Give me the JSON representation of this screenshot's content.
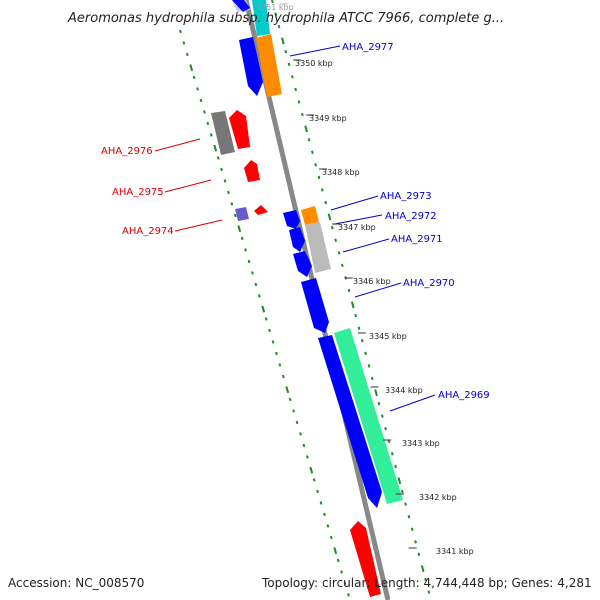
{
  "title": "Aeromonas hydrophila subsp. hydrophila ATCC 7966, complete g...",
  "footer": {
    "accession": "Accession: NC_008570",
    "summary": "Topology: circular; Length: 4,744,448 bp; Genes: 4,281"
  },
  "colors": {
    "forward_strand": "#0000ff",
    "reverse_strand": "#ff0000",
    "forward_label": "#0000cc",
    "reverse_label": "#dd0000",
    "backbone": "#888888",
    "gc_dots": "#1e8c1e",
    "orange": "#ff8c00",
    "gray": "#777777",
    "light_gray": "#bbbbbb",
    "green": "#33ee99",
    "cyan": "#00cccc"
  },
  "ticks": [
    "3351 kbp",
    "3350 kbp",
    "3349 kbp",
    "3348 kbp",
    "3347 kbp",
    "3346 kbp",
    "3345 kbp",
    "3344 kbp",
    "3343 kbp",
    "3342 kbp",
    "3341 kbp"
  ],
  "forward_labels": [
    "AHA_2977",
    "AHA_2973",
    "AHA_2972",
    "AHA_2971",
    "AHA_2970",
    "AHA_2969"
  ],
  "reverse_labels": [
    "AHA_2976",
    "AHA_2975",
    "AHA_2974"
  ]
}
